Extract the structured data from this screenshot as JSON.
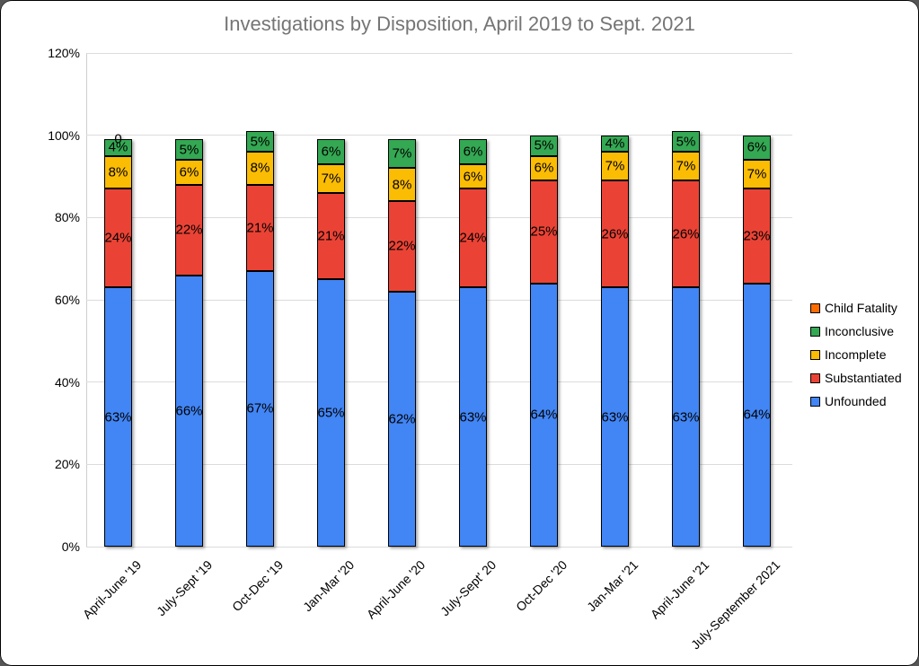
{
  "chart_data": {
    "type": "bar",
    "variant": "stacked-percent-column",
    "title": "Investigations by Disposition, April 2019 to Sept. 2021",
    "title_color": "#757575",
    "categories": [
      "April-June '19",
      "July-Sept '19",
      "Oct-Dec '19",
      "Jan-Mar '20",
      "April-June '20",
      "July-Sept' 20",
      "Oct-Dec '20",
      "Jan-Mar '21",
      "April-June '21",
      "July-September 2021"
    ],
    "series": [
      {
        "name": "Unfounded",
        "color": "#4285F4",
        "values": [
          63,
          66,
          67,
          65,
          62,
          63,
          64,
          63,
          63,
          64
        ]
      },
      {
        "name": "Substantiated",
        "color": "#EA4335",
        "values": [
          24,
          22,
          21,
          21,
          22,
          24,
          25,
          26,
          26,
          23
        ]
      },
      {
        "name": "Incomplete",
        "color": "#FBBC04",
        "values": [
          8,
          6,
          8,
          7,
          8,
          6,
          6,
          7,
          7,
          7
        ]
      },
      {
        "name": "Inconclusive",
        "color": "#34A853",
        "values": [
          4,
          5,
          5,
          6,
          7,
          6,
          5,
          4,
          5,
          6
        ]
      },
      {
        "name": "Child Fatality",
        "color": "#FF6D01",
        "values": [
          0,
          0,
          0,
          0,
          0,
          0,
          0,
          0,
          0,
          0
        ]
      }
    ],
    "data_label_format": "{value}%",
    "zero_label": {
      "category_index": 0,
      "text": "0"
    },
    "y_ticks": [
      "0%",
      "20%",
      "40%",
      "60%",
      "80%",
      "100%",
      "120%"
    ],
    "ylim": [
      0,
      120
    ],
    "grid": true,
    "legend": {
      "position": "right",
      "items": [
        {
          "label": "Child Fatality",
          "color": "#FF6D01"
        },
        {
          "label": "Inconclusive",
          "color": "#34A853"
        },
        {
          "label": "Incomplete",
          "color": "#FBBC04"
        },
        {
          "label": "Substantiated",
          "color": "#EA4335"
        },
        {
          "label": "Unfounded",
          "color": "#4285F4"
        }
      ]
    }
  }
}
